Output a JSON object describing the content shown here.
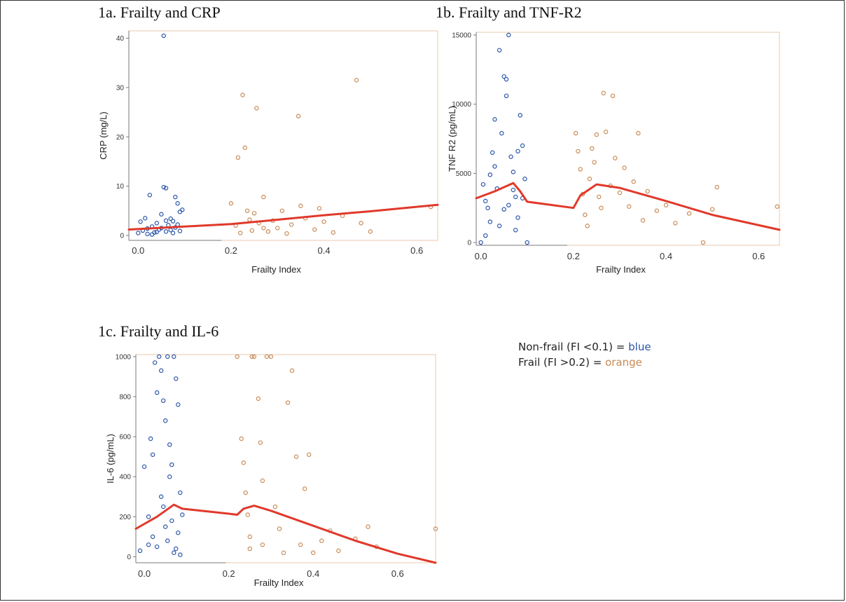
{
  "legend": {
    "nonfrail_prefix": "Non-frail (FI <0.1) = ",
    "nonfrail_color_word": "blue",
    "frail_prefix": "Frail (FI >0.2) = ",
    "frail_color_word": "orange"
  },
  "colors": {
    "blue": "#2a55a8",
    "orange": "#c98a55",
    "fit_line": "#e0392b",
    "frame_right": "#e8c9b2"
  },
  "chart_data": [
    {
      "id": "crp",
      "type": "scatter",
      "title": "1a. Frailty and CRP",
      "xlabel": "Frailty Index",
      "ylabel": "CRP (mg/L)",
      "xlim": [
        -0.02,
        0.645
      ],
      "ylim": [
        -1,
        41.5
      ],
      "xticks": [
        "0.0",
        "0.2",
        "0.4",
        "0.6"
      ],
      "xtick_values": [
        0.0,
        0.2,
        0.4,
        0.6
      ],
      "yticks": [
        "0",
        "10",
        "20",
        "30",
        "40"
      ],
      "ytick_values": [
        0,
        10,
        20,
        30,
        40
      ],
      "series": [
        {
          "name": "Non-frail (FI <0.1)",
          "color": "blue",
          "points": [
            [
              0.0,
              0.5
            ],
            [
              0.005,
              2.8
            ],
            [
              0.01,
              1.0
            ],
            [
              0.015,
              3.5
            ],
            [
              0.02,
              0.3
            ],
            [
              0.025,
              8.2
            ],
            [
              0.03,
              1.8
            ],
            [
              0.035,
              0.6
            ],
            [
              0.04,
              2.5
            ],
            [
              0.045,
              1.2
            ],
            [
              0.05,
              4.3
            ],
            [
              0.055,
              40.5
            ],
            [
              0.055,
              9.8
            ],
            [
              0.06,
              9.6
            ],
            [
              0.06,
              0.8
            ],
            [
              0.065,
              2.1
            ],
            [
              0.07,
              3.4
            ],
            [
              0.075,
              0.5
            ],
            [
              0.08,
              1.6
            ],
            [
              0.08,
              7.8
            ],
            [
              0.085,
              6.5
            ],
            [
              0.09,
              4.8
            ],
            [
              0.09,
              0.9
            ],
            [
              0.095,
              5.2
            ],
            [
              0.03,
              0.2
            ],
            [
              0.05,
              1.5
            ],
            [
              0.07,
              1.1
            ],
            [
              0.04,
              0.7
            ],
            [
              0.06,
              3.0
            ],
            [
              0.085,
              2.2
            ],
            [
              0.02,
              1.4
            ],
            [
              0.075,
              2.9
            ]
          ]
        },
        {
          "name": "Frail (FI >0.2)",
          "color": "orange",
          "points": [
            [
              0.2,
              6.5
            ],
            [
              0.21,
              2.0
            ],
            [
              0.215,
              15.8
            ],
            [
              0.22,
              0.5
            ],
            [
              0.225,
              28.5
            ],
            [
              0.23,
              17.8
            ],
            [
              0.235,
              5.0
            ],
            [
              0.24,
              3.2
            ],
            [
              0.245,
              1.0
            ],
            [
              0.25,
              4.5
            ],
            [
              0.255,
              25.8
            ],
            [
              0.26,
              2.5
            ],
            [
              0.27,
              7.8
            ],
            [
              0.28,
              0.8
            ],
            [
              0.29,
              3.0
            ],
            [
              0.3,
              1.5
            ],
            [
              0.31,
              5.0
            ],
            [
              0.32,
              0.4
            ],
            [
              0.33,
              2.2
            ],
            [
              0.345,
              24.2
            ],
            [
              0.35,
              6.0
            ],
            [
              0.36,
              3.5
            ],
            [
              0.38,
              1.2
            ],
            [
              0.39,
              5.5
            ],
            [
              0.4,
              2.8
            ],
            [
              0.42,
              0.6
            ],
            [
              0.44,
              4.0
            ],
            [
              0.47,
              31.5
            ],
            [
              0.48,
              2.5
            ],
            [
              0.5,
              0.8
            ],
            [
              0.63,
              5.8
            ],
            [
              0.27,
              1.5
            ]
          ]
        }
      ],
      "fit_line": [
        [
          -0.02,
          1.2
        ],
        [
          0.1,
          1.8
        ],
        [
          0.2,
          2.3
        ],
        [
          0.3,
          3.2
        ],
        [
          0.4,
          4.1
        ],
        [
          0.5,
          4.9
        ],
        [
          0.645,
          6.2
        ]
      ]
    },
    {
      "id": "tnfr2",
      "type": "scatter",
      "title": "1b. Frailty and TNF-R2",
      "xlabel": "Frailty Index",
      "ylabel": "TNF R2 (pg/mL)",
      "xlim": [
        -0.01,
        0.645
      ],
      "ylim": [
        -200,
        15200
      ],
      "xticks": [
        "0.0",
        "0.2",
        "0.4",
        "0.6"
      ],
      "xtick_values": [
        0.0,
        0.2,
        0.4,
        0.6
      ],
      "yticks": [
        "0",
        "5000",
        "10000",
        "15000"
      ],
      "ytick_values": [
        0,
        5000,
        10000,
        15000
      ],
      "series": [
        {
          "name": "Non-frail (FI <0.1)",
          "color": "blue",
          "points": [
            [
              0.0,
              0
            ],
            [
              0.005,
              4200
            ],
            [
              0.01,
              3000
            ],
            [
              0.015,
              2500
            ],
            [
              0.02,
              4900
            ],
            [
              0.025,
              6500
            ],
            [
              0.03,
              8900
            ],
            [
              0.035,
              3900
            ],
            [
              0.04,
              13900
            ],
            [
              0.045,
              7900
            ],
            [
              0.05,
              12000
            ],
            [
              0.055,
              11800
            ],
            [
              0.055,
              10600
            ],
            [
              0.06,
              15000
            ],
            [
              0.065,
              6200
            ],
            [
              0.07,
              5100
            ],
            [
              0.075,
              3300
            ],
            [
              0.08,
              1800
            ],
            [
              0.085,
              9200
            ],
            [
              0.09,
              7000
            ],
            [
              0.095,
              4600
            ],
            [
              0.1,
              0
            ],
            [
              0.05,
              2400
            ],
            [
              0.07,
              3800
            ],
            [
              0.04,
              1200
            ],
            [
              0.03,
              5500
            ],
            [
              0.08,
              6600
            ],
            [
              0.06,
              2700
            ],
            [
              0.02,
              1500
            ],
            [
              0.09,
              3200
            ],
            [
              0.01,
              500
            ],
            [
              0.075,
              900
            ]
          ]
        },
        {
          "name": "Frail (FI >0.2)",
          "color": "orange",
          "points": [
            [
              0.205,
              7900
            ],
            [
              0.21,
              6600
            ],
            [
              0.215,
              5300
            ],
            [
              0.22,
              3500
            ],
            [
              0.225,
              2000
            ],
            [
              0.23,
              1200
            ],
            [
              0.235,
              4600
            ],
            [
              0.24,
              6800
            ],
            [
              0.245,
              5800
            ],
            [
              0.25,
              7800
            ],
            [
              0.255,
              3300
            ],
            [
              0.26,
              2500
            ],
            [
              0.265,
              10800
            ],
            [
              0.27,
              8000
            ],
            [
              0.28,
              4100
            ],
            [
              0.285,
              10600
            ],
            [
              0.29,
              6100
            ],
            [
              0.3,
              3600
            ],
            [
              0.31,
              5400
            ],
            [
              0.32,
              2600
            ],
            [
              0.33,
              4400
            ],
            [
              0.34,
              7900
            ],
            [
              0.35,
              1600
            ],
            [
              0.36,
              3700
            ],
            [
              0.38,
              2300
            ],
            [
              0.4,
              2700
            ],
            [
              0.42,
              1400
            ],
            [
              0.45,
              2100
            ],
            [
              0.48,
              0
            ],
            [
              0.5,
              2400
            ],
            [
              0.51,
              4000
            ],
            [
              0.64,
              2600
            ]
          ]
        }
      ],
      "fit_line": [
        [
          -0.01,
          3200
        ],
        [
          0.03,
          3700
        ],
        [
          0.07,
          4300
        ],
        [
          0.085,
          3700
        ],
        [
          0.1,
          2950
        ],
        [
          0.2,
          2500
        ],
        [
          0.215,
          3400
        ],
        [
          0.25,
          4200
        ],
        [
          0.3,
          3950
        ],
        [
          0.4,
          3000
        ],
        [
          0.5,
          2000
        ],
        [
          0.645,
          920
        ]
      ]
    },
    {
      "id": "il6",
      "type": "scatter",
      "title": "1c. Frailty and IL-6",
      "xlabel": "Frailty Index",
      "ylabel": "IL-6 (pg/mL)",
      "xlim": [
        -0.02,
        0.69
      ],
      "ylim": [
        -30,
        1010
      ],
      "xticks": [
        "0.0",
        "0.2",
        "0.4",
        "0.6"
      ],
      "xtick_values": [
        0.0,
        0.2,
        0.4,
        0.6
      ],
      "yticks": [
        "0",
        "200",
        "400",
        "600",
        "800",
        "1000"
      ],
      "ytick_values": [
        0,
        200,
        400,
        600,
        800,
        1000
      ],
      "series": [
        {
          "name": "Non-frail (FI <0.1)",
          "color": "blue",
          "points": [
            [
              -0.01,
              30
            ],
            [
              0.0,
              450
            ],
            [
              0.01,
              200
            ],
            [
              0.015,
              590
            ],
            [
              0.02,
              510
            ],
            [
              0.025,
              970
            ],
            [
              0.03,
              820
            ],
            [
              0.035,
              1000
            ],
            [
              0.04,
              930
            ],
            [
              0.045,
              780
            ],
            [
              0.05,
              680
            ],
            [
              0.055,
              1000
            ],
            [
              0.06,
              560
            ],
            [
              0.065,
              460
            ],
            [
              0.07,
              1000
            ],
            [
              0.075,
              890
            ],
            [
              0.08,
              760
            ],
            [
              0.085,
              320
            ],
            [
              0.09,
              210
            ],
            [
              0.02,
              100
            ],
            [
              0.03,
              50
            ],
            [
              0.04,
              300
            ],
            [
              0.05,
              150
            ],
            [
              0.06,
              400
            ],
            [
              0.07,
              20
            ],
            [
              0.08,
              120
            ],
            [
              0.01,
              60
            ],
            [
              0.045,
              250
            ],
            [
              0.055,
              80
            ],
            [
              0.065,
              180
            ],
            [
              0.075,
              40
            ],
            [
              0.085,
              10
            ]
          ]
        },
        {
          "name": "Frail (FI >0.2)",
          "color": "orange",
          "points": [
            [
              0.22,
              1000
            ],
            [
              0.23,
              590
            ],
            [
              0.235,
              470
            ],
            [
              0.24,
              320
            ],
            [
              0.245,
              210
            ],
            [
              0.25,
              100
            ],
            [
              0.255,
              1000
            ],
            [
              0.26,
              1000
            ],
            [
              0.27,
              790
            ],
            [
              0.275,
              570
            ],
            [
              0.28,
              380
            ],
            [
              0.29,
              1000
            ],
            [
              0.3,
              1000
            ],
            [
              0.31,
              250
            ],
            [
              0.32,
              140
            ],
            [
              0.34,
              770
            ],
            [
              0.35,
              930
            ],
            [
              0.36,
              500
            ],
            [
              0.37,
              60
            ],
            [
              0.38,
              340
            ],
            [
              0.39,
              510
            ],
            [
              0.4,
              20
            ],
            [
              0.42,
              80
            ],
            [
              0.44,
              130
            ],
            [
              0.46,
              30
            ],
            [
              0.5,
              90
            ],
            [
              0.53,
              150
            ],
            [
              0.55,
              50
            ],
            [
              0.69,
              140
            ],
            [
              0.25,
              40
            ],
            [
              0.28,
              60
            ],
            [
              0.33,
              20
            ]
          ]
        }
      ],
      "fit_line": [
        [
          -0.02,
          140
        ],
        [
          0.03,
          200
        ],
        [
          0.07,
          260
        ],
        [
          0.09,
          240
        ],
        [
          0.2,
          215
        ],
        [
          0.22,
          210
        ],
        [
          0.235,
          240
        ],
        [
          0.26,
          255
        ],
        [
          0.3,
          230
        ],
        [
          0.4,
          155
        ],
        [
          0.5,
          80
        ],
        [
          0.6,
          15
        ],
        [
          0.69,
          -30
        ]
      ]
    }
  ]
}
